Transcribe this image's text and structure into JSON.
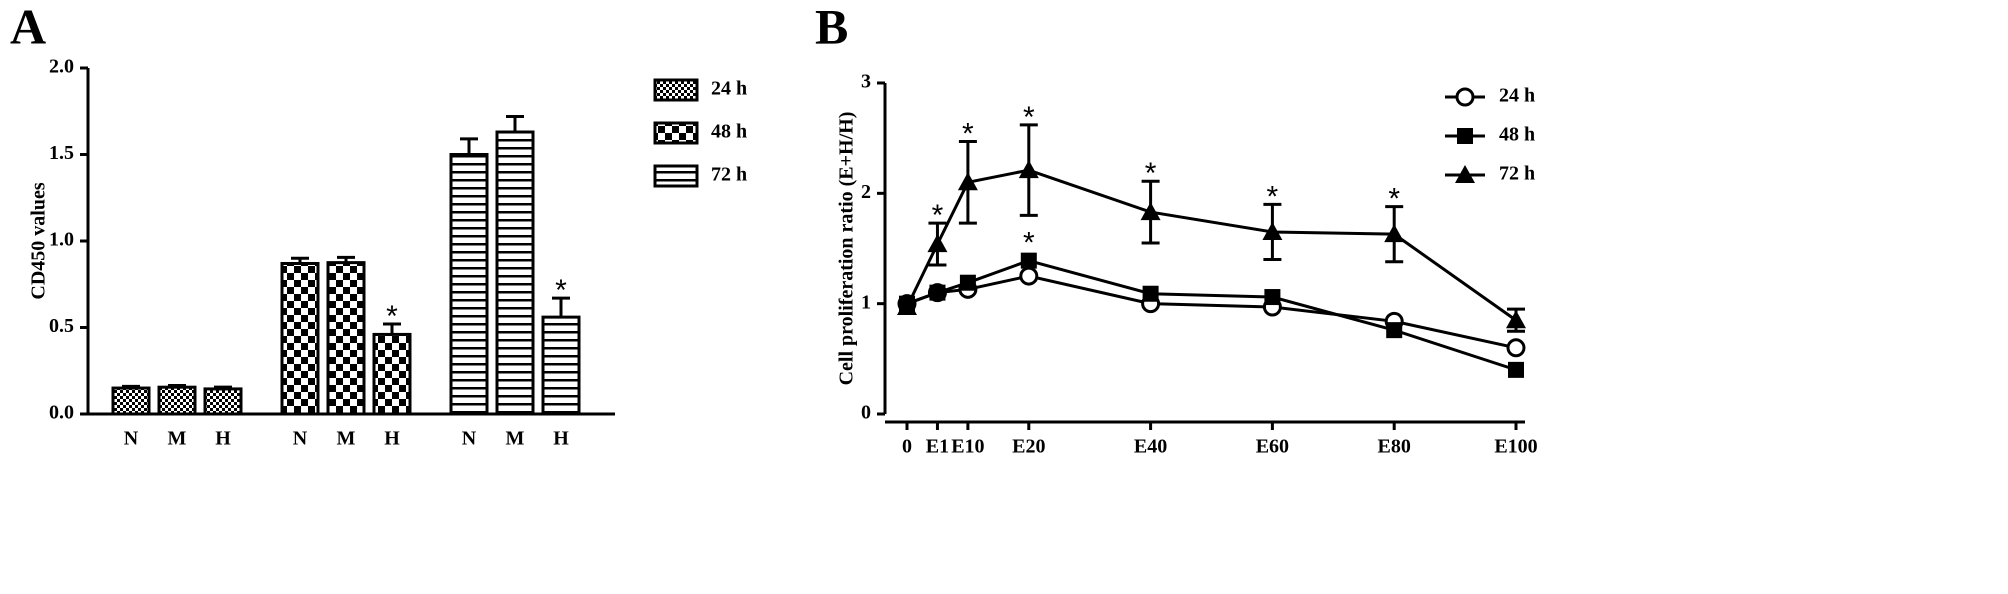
{
  "chart_data": [
    {
      "type": "bar",
      "panel": "A",
      "ylabel": "CD450 values",
      "categories": [
        "N",
        "M",
        "H"
      ],
      "series": [
        {
          "name": "24 h",
          "pattern": "fine-check",
          "color": "#000000",
          "values": [
            0.15,
            0.155,
            0.145
          ],
          "errors": [
            0.01,
            0.01,
            0.01
          ]
        },
        {
          "name": "48 h",
          "pattern": "checker",
          "color": "#000000",
          "values": [
            0.87,
            0.875,
            0.46
          ],
          "errors": [
            0.03,
            0.03,
            0.06
          ]
        },
        {
          "name": "72 h",
          "pattern": "h-stripes",
          "color": "#000000",
          "values": [
            1.5,
            1.63,
            0.56
          ],
          "errors": [
            0.09,
            0.09,
            0.11
          ]
        }
      ],
      "ylim": [
        0,
        2
      ],
      "yticks": [
        {
          "value": 0,
          "label": "0.0"
        },
        {
          "value": 0.5,
          "label": "0.5"
        },
        {
          "value": 1,
          "label": "1.0"
        },
        {
          "value": 1.5,
          "label": "1.5"
        },
        {
          "value": 2,
          "label": "2.0"
        }
      ],
      "annotations": [
        {
          "text": "*",
          "series": 1,
          "index": 2
        },
        {
          "text": "*",
          "series": 2,
          "index": 2
        }
      ]
    },
    {
      "type": "line",
      "panel": "B",
      "ylabel": "Cell proliferation ratio (E+H/H)",
      "x": [
        0,
        5,
        10,
        20,
        40,
        60,
        80,
        100
      ],
      "series": [
        {
          "name": "24 h",
          "marker": "circle-open",
          "color": "#000000",
          "values": [
            1.0,
            1.1,
            1.13,
            1.25,
            1.0,
            0.97,
            0.84,
            0.6
          ]
        },
        {
          "name": "48 h",
          "marker": "square",
          "color": "#000000",
          "values": [
            1.0,
            1.1,
            1.19,
            1.39,
            1.09,
            1.06,
            0.76,
            0.4
          ]
        },
        {
          "name": "72 h",
          "marker": "triangle",
          "color": "#000000",
          "values": [
            0.97,
            1.54,
            2.1,
            2.21,
            1.83,
            1.65,
            1.63,
            0.85
          ],
          "errors": [
            0,
            0.19,
            0.37,
            0.41,
            0.28,
            0.25,
            0.25,
            0.1
          ]
        }
      ],
      "xlim": [
        0,
        100
      ],
      "xticks": [
        0,
        {
          "value": 5,
          "label": "E1"
        },
        {
          "value": 10,
          "label": "E10"
        },
        {
          "value": 20,
          "label": "E20"
        },
        {
          "value": 40,
          "label": "E40"
        },
        {
          "value": 60,
          "label": "E60"
        },
        {
          "value": 80,
          "label": "E80"
        },
        {
          "value": 100,
          "label": "E100"
        }
      ],
      "ylim": [
        0,
        3
      ],
      "yticks": [
        0,
        1,
        2,
        3
      ],
      "annotations": [
        {
          "text": "*",
          "series": 2,
          "index": 1
        },
        {
          "text": "*",
          "series": 2,
          "index": 2
        },
        {
          "text": "*",
          "series": 2,
          "index": 3
        },
        {
          "text": "*",
          "series": 2,
          "index": 4
        },
        {
          "text": "*",
          "series": 2,
          "index": 5
        },
        {
          "text": "*",
          "series": 2,
          "index": 6
        },
        {
          "text": "*",
          "series": 1,
          "index": 3
        }
      ]
    }
  ]
}
